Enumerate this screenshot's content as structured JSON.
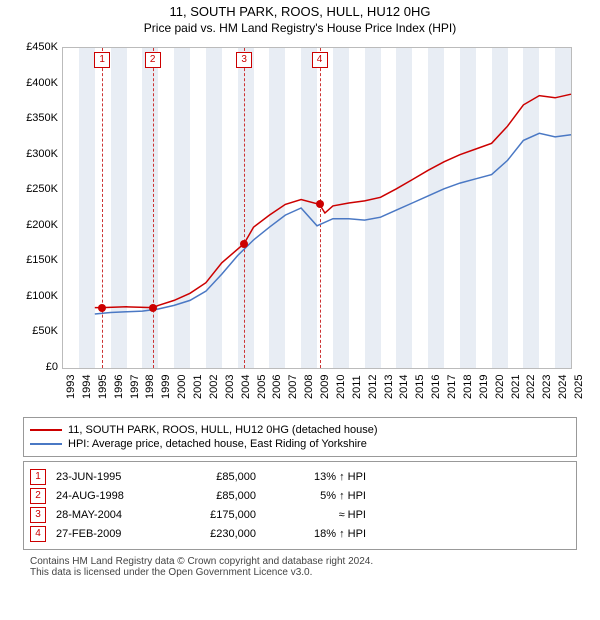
{
  "title_line1": "11, SOUTH PARK, ROOS, HULL, HU12 0HG",
  "title_line2": "Price paid vs. HM Land Registry's House Price Index (HPI)",
  "chart": {
    "type": "line",
    "background_color": "#ffffff",
    "band_color": "#e8edf4",
    "axis_color": "#bbbbbb",
    "x_min": 1993,
    "x_max": 2025,
    "x_ticks": [
      1993,
      1994,
      1995,
      1996,
      1997,
      1998,
      1999,
      2000,
      2001,
      2002,
      2003,
      2004,
      2005,
      2006,
      2007,
      2008,
      2009,
      2010,
      2011,
      2012,
      2013,
      2014,
      2015,
      2016,
      2017,
      2018,
      2019,
      2020,
      2021,
      2022,
      2023,
      2024,
      2025
    ],
    "y_min": 0,
    "y_max": 450000,
    "y_tick_step": 50000,
    "y_tick_labels": [
      "£0",
      "£50K",
      "£100K",
      "£150K",
      "£200K",
      "£250K",
      "£300K",
      "£350K",
      "£400K",
      "£450K"
    ],
    "bands": [
      [
        1994,
        1995
      ],
      [
        1996,
        1997
      ],
      [
        1998,
        1999
      ],
      [
        2000,
        2001
      ],
      [
        2002,
        2003
      ],
      [
        2004,
        2005
      ],
      [
        2006,
        2007
      ],
      [
        2008,
        2009
      ],
      [
        2010,
        2011
      ],
      [
        2012,
        2013
      ],
      [
        2014,
        2015
      ],
      [
        2016,
        2017
      ],
      [
        2018,
        2019
      ],
      [
        2020,
        2021
      ],
      [
        2022,
        2023
      ],
      [
        2024,
        2025
      ]
    ],
    "event_lines": [
      1995.47,
      1998.65,
      2004.41,
      2009.16
    ],
    "event_numbers": [
      "1",
      "2",
      "3",
      "4"
    ],
    "label_fontsize": 11,
    "line_width": 1.5,
    "series": [
      {
        "name": "subject",
        "color": "#cc0000",
        "data": [
          [
            1995.0,
            85000
          ],
          [
            1995.47,
            85000
          ],
          [
            1997,
            86000
          ],
          [
            1998.65,
            85000
          ],
          [
            1999,
            88000
          ],
          [
            2000,
            95000
          ],
          [
            2001,
            105000
          ],
          [
            2002,
            120000
          ],
          [
            2003,
            148000
          ],
          [
            2004.41,
            175000
          ],
          [
            2005,
            198000
          ],
          [
            2006,
            215000
          ],
          [
            2007,
            230000
          ],
          [
            2008,
            237000
          ],
          [
            2009.16,
            230000
          ],
          [
            2009.5,
            218000
          ],
          [
            2010,
            228000
          ],
          [
            2011,
            232000
          ],
          [
            2012,
            235000
          ],
          [
            2013,
            240000
          ],
          [
            2014,
            252000
          ],
          [
            2015,
            265000
          ],
          [
            2016,
            278000
          ],
          [
            2017,
            290000
          ],
          [
            2018,
            300000
          ],
          [
            2019,
            308000
          ],
          [
            2020,
            316000
          ],
          [
            2021,
            340000
          ],
          [
            2022,
            370000
          ],
          [
            2023,
            383000
          ],
          [
            2024,
            380000
          ],
          [
            2025,
            385000
          ]
        ],
        "sale_points": [
          [
            1995.47,
            85000
          ],
          [
            1998.65,
            85000
          ],
          [
            2004.41,
            175000
          ],
          [
            2009.16,
            230000
          ]
        ]
      },
      {
        "name": "hpi",
        "color": "#4a78c4",
        "data": [
          [
            1995.0,
            76000
          ],
          [
            1996,
            78000
          ],
          [
            1997,
            79000
          ],
          [
            1998,
            80000
          ],
          [
            1999,
            83000
          ],
          [
            2000,
            88000
          ],
          [
            2001,
            95000
          ],
          [
            2002,
            108000
          ],
          [
            2003,
            132000
          ],
          [
            2004,
            158000
          ],
          [
            2005,
            180000
          ],
          [
            2006,
            198000
          ],
          [
            2007,
            215000
          ],
          [
            2008,
            225000
          ],
          [
            2009,
            200000
          ],
          [
            2010,
            210000
          ],
          [
            2011,
            210000
          ],
          [
            2012,
            208000
          ],
          [
            2013,
            212000
          ],
          [
            2014,
            222000
          ],
          [
            2015,
            232000
          ],
          [
            2016,
            242000
          ],
          [
            2017,
            252000
          ],
          [
            2018,
            260000
          ],
          [
            2019,
            266000
          ],
          [
            2020,
            272000
          ],
          [
            2021,
            292000
          ],
          [
            2022,
            320000
          ],
          [
            2023,
            330000
          ],
          [
            2024,
            325000
          ],
          [
            2025,
            328000
          ]
        ]
      }
    ]
  },
  "legend": {
    "items": [
      {
        "color": "#cc0000",
        "label": "11, SOUTH PARK, ROOS, HULL, HU12 0HG (detached house)"
      },
      {
        "color": "#4a78c4",
        "label": "HPI: Average price, detached house, East Riding of Yorkshire"
      }
    ]
  },
  "sales": [
    {
      "n": "1",
      "date": "23-JUN-1995",
      "price": "£85,000",
      "delta": "13% ↑ HPI"
    },
    {
      "n": "2",
      "date": "24-AUG-1998",
      "price": "£85,000",
      "delta": "5% ↑ HPI"
    },
    {
      "n": "3",
      "date": "28-MAY-2004",
      "price": "£175,000",
      "delta": "≈ HPI"
    },
    {
      "n": "4",
      "date": "27-FEB-2009",
      "price": "£230,000",
      "delta": "18% ↑ HPI"
    }
  ],
  "footer_line1": "Contains HM Land Registry data © Crown copyright and database right 2024.",
  "footer_line2": "This data is licensed under the Open Government Licence v3.0."
}
